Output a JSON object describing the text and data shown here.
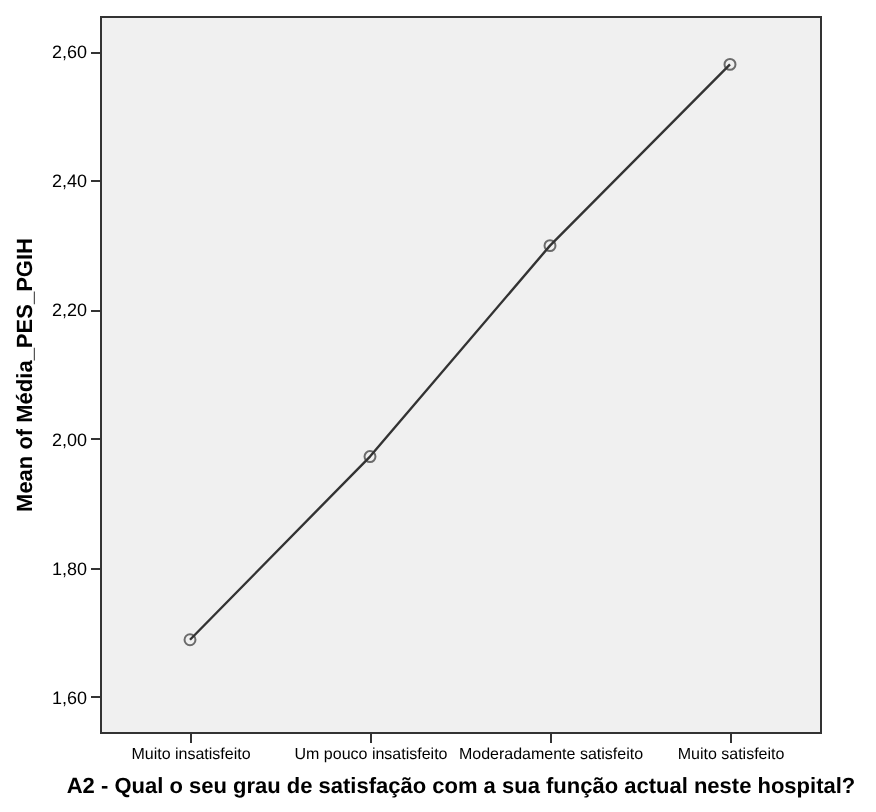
{
  "chart_data": {
    "type": "line",
    "xlabel": "A2 - Qual o seu grau de satisfação com a sua função actual neste hospital?",
    "ylabel": "Mean of Média_PES_PGIH",
    "categories": [
      "Muito insatisfeito",
      "Um pouco insatisfeito",
      "Moderadamente satisfeito",
      "Muito satisfeito"
    ],
    "series": [
      {
        "color": "#333333",
        "values": [
          1.688,
          1.972,
          2.299,
          2.58
        ]
      }
    ],
    "ylim": [
      1.545,
      2.655
    ],
    "yticks": [
      {
        "value": 1.6,
        "label": "1,60"
      },
      {
        "value": 1.8,
        "label": "1,80"
      },
      {
        "value": 2.0,
        "label": "2,00"
      },
      {
        "value": 2.2,
        "label": "2,20"
      },
      {
        "value": 2.4,
        "label": "2,40"
      },
      {
        "value": 2.6,
        "label": "2,60"
      }
    ],
    "marker": "circle",
    "line_style": "solid",
    "grid": false,
    "legend": false
  }
}
